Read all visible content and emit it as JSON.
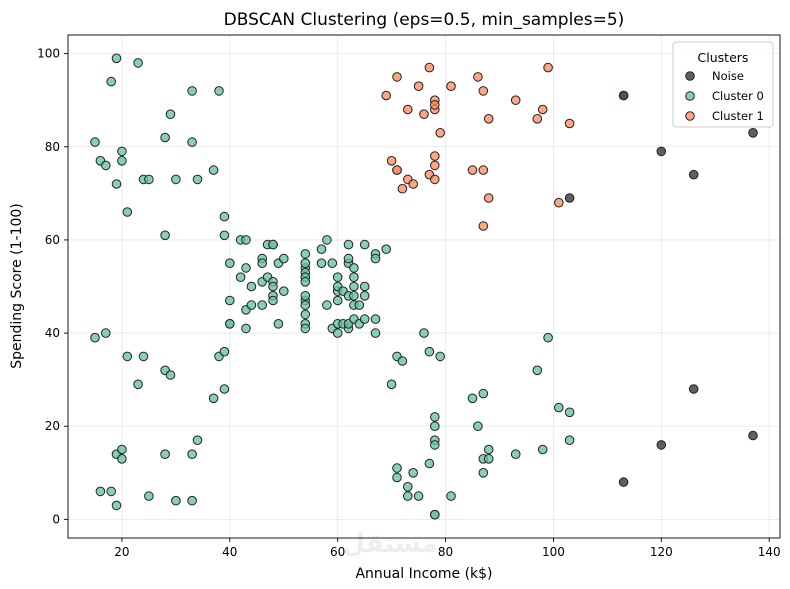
{
  "chart_data": {
    "type": "scatter",
    "title": "DBSCAN Clustering (eps=0.5, min_samples=5)",
    "xlabel": "Annual Income (k$)",
    "ylabel": "Spending Score (1-100)",
    "xlim": [
      10,
      142
    ],
    "ylim": [
      -4,
      104
    ],
    "xticks": [
      20,
      40,
      60,
      80,
      100,
      120,
      140
    ],
    "yticks": [
      0,
      20,
      40,
      60,
      80,
      100
    ],
    "grid": true,
    "legend": {
      "title": "Clusters",
      "placement": "top-right"
    },
    "watermark": "مستقل",
    "series": [
      {
        "name": "Noise",
        "color": "#333333",
        "points": [
          [
            103,
            69
          ],
          [
            113,
            91
          ],
          [
            120,
            79
          ],
          [
            126,
            74
          ],
          [
            137,
            83
          ],
          [
            113,
            8
          ],
          [
            120,
            16
          ],
          [
            126,
            28
          ],
          [
            137,
            18
          ]
        ]
      },
      {
        "name": "Cluster 0",
        "color": "#66c2a5",
        "points": [
          [
            15,
            81
          ],
          [
            16,
            77
          ],
          [
            17,
            76
          ],
          [
            18,
            94
          ],
          [
            19,
            72
          ],
          [
            19,
            99
          ],
          [
            20,
            77
          ],
          [
            20,
            79
          ],
          [
            21,
            66
          ],
          [
            23,
            98
          ],
          [
            24,
            73
          ],
          [
            25,
            73
          ],
          [
            28,
            82
          ],
          [
            28,
            61
          ],
          [
            29,
            87
          ],
          [
            30,
            73
          ],
          [
            33,
            92
          ],
          [
            33,
            81
          ],
          [
            34,
            73
          ],
          [
            37,
            75
          ],
          [
            38,
            92
          ],
          [
            39,
            65
          ],
          [
            39,
            61
          ],
          [
            15,
            39
          ],
          [
            16,
            6
          ],
          [
            17,
            40
          ],
          [
            18,
            6
          ],
          [
            19,
            3
          ],
          [
            19,
            14
          ],
          [
            20,
            15
          ],
          [
            20,
            13
          ],
          [
            21,
            35
          ],
          [
            23,
            29
          ],
          [
            24,
            35
          ],
          [
            25,
            5
          ],
          [
            28,
            14
          ],
          [
            28,
            32
          ],
          [
            29,
            31
          ],
          [
            30,
            4
          ],
          [
            33,
            4
          ],
          [
            33,
            14
          ],
          [
            34,
            17
          ],
          [
            37,
            26
          ],
          [
            38,
            35
          ],
          [
            39,
            36
          ],
          [
            39,
            28
          ],
          [
            40,
            55
          ],
          [
            40,
            47
          ],
          [
            40,
            42
          ],
          [
            40,
            42
          ],
          [
            42,
            52
          ],
          [
            42,
            60
          ],
          [
            43,
            54
          ],
          [
            43,
            60
          ],
          [
            43,
            45
          ],
          [
            43,
            41
          ],
          [
            44,
            50
          ],
          [
            44,
            46
          ],
          [
            46,
            51
          ],
          [
            46,
            46
          ],
          [
            46,
            56
          ],
          [
            46,
            55
          ],
          [
            47,
            52
          ],
          [
            47,
            59
          ],
          [
            48,
            51
          ],
          [
            48,
            59
          ],
          [
            48,
            50
          ],
          [
            48,
            48
          ],
          [
            48,
            59
          ],
          [
            48,
            47
          ],
          [
            49,
            55
          ],
          [
            49,
            42
          ],
          [
            50,
            49
          ],
          [
            50,
            56
          ],
          [
            54,
            47
          ],
          [
            54,
            54
          ],
          [
            54,
            53
          ],
          [
            54,
            48
          ],
          [
            54,
            52
          ],
          [
            54,
            42
          ],
          [
            54,
            51
          ],
          [
            54,
            55
          ],
          [
            54,
            41
          ],
          [
            54,
            44
          ],
          [
            54,
            57
          ],
          [
            54,
            46
          ],
          [
            57,
            58
          ],
          [
            57,
            55
          ],
          [
            58,
            60
          ],
          [
            58,
            46
          ],
          [
            59,
            55
          ],
          [
            59,
            41
          ],
          [
            60,
            49
          ],
          [
            60,
            40
          ],
          [
            60,
            42
          ],
          [
            60,
            52
          ],
          [
            60,
            47
          ],
          [
            60,
            50
          ],
          [
            61,
            42
          ],
          [
            61,
            49
          ],
          [
            62,
            41
          ],
          [
            62,
            48
          ],
          [
            62,
            59
          ],
          [
            62,
            55
          ],
          [
            62,
            56
          ],
          [
            62,
            42
          ],
          [
            63,
            50
          ],
          [
            63,
            46
          ],
          [
            63,
            43
          ],
          [
            63,
            48
          ],
          [
            63,
            52
          ],
          [
            63,
            54
          ],
          [
            64,
            42
          ],
          [
            64,
            46
          ],
          [
            65,
            48
          ],
          [
            65,
            50
          ],
          [
            65,
            43
          ],
          [
            65,
            59
          ],
          [
            67,
            43
          ],
          [
            67,
            57
          ],
          [
            67,
            56
          ],
          [
            67,
            40
          ],
          [
            69,
            58
          ],
          [
            70,
            29
          ],
          [
            71,
            35
          ],
          [
            71,
            11
          ],
          [
            71,
            9
          ],
          [
            72,
            34
          ],
          [
            73,
            5
          ],
          [
            73,
            7
          ],
          [
            74,
            10
          ],
          [
            75,
            5
          ],
          [
            76,
            40
          ],
          [
            77,
            12
          ],
          [
            77,
            36
          ],
          [
            78,
            22
          ],
          [
            78,
            17
          ],
          [
            78,
            20
          ],
          [
            78,
            16
          ],
          [
            78,
            1
          ],
          [
            78,
            1
          ],
          [
            79,
            35
          ],
          [
            81,
            5
          ],
          [
            85,
            26
          ],
          [
            86,
            20
          ],
          [
            87,
            27
          ],
          [
            87,
            13
          ],
          [
            87,
            10
          ],
          [
            88,
            13
          ],
          [
            88,
            15
          ],
          [
            93,
            14
          ],
          [
            97,
            32
          ],
          [
            98,
            15
          ],
          [
            99,
            39
          ],
          [
            101,
            24
          ],
          [
            103,
            17
          ],
          [
            103,
            23
          ]
        ]
      },
      {
        "name": "Cluster 1",
        "color": "#fc8d62",
        "points": [
          [
            69,
            91
          ],
          [
            70,
            77
          ],
          [
            71,
            95
          ],
          [
            71,
            75
          ],
          [
            71,
            75
          ],
          [
            72,
            71
          ],
          [
            73,
            88
          ],
          [
            73,
            73
          ],
          [
            74,
            72
          ],
          [
            75,
            93
          ],
          [
            76,
            87
          ],
          [
            77,
            97
          ],
          [
            77,
            74
          ],
          [
            78,
            90
          ],
          [
            78,
            88
          ],
          [
            78,
            76
          ],
          [
            78,
            89
          ],
          [
            78,
            78
          ],
          [
            78,
            73
          ],
          [
            79,
            83
          ],
          [
            81,
            93
          ],
          [
            85,
            75
          ],
          [
            86,
            95
          ],
          [
            87,
            63
          ],
          [
            87,
            75
          ],
          [
            87,
            92
          ],
          [
            88,
            86
          ],
          [
            88,
            69
          ],
          [
            93,
            90
          ],
          [
            97,
            86
          ],
          [
            98,
            88
          ],
          [
            99,
            97
          ],
          [
            101,
            68
          ],
          [
            103,
            85
          ],
          [
            113,
            91
          ]
        ]
      }
    ]
  }
}
